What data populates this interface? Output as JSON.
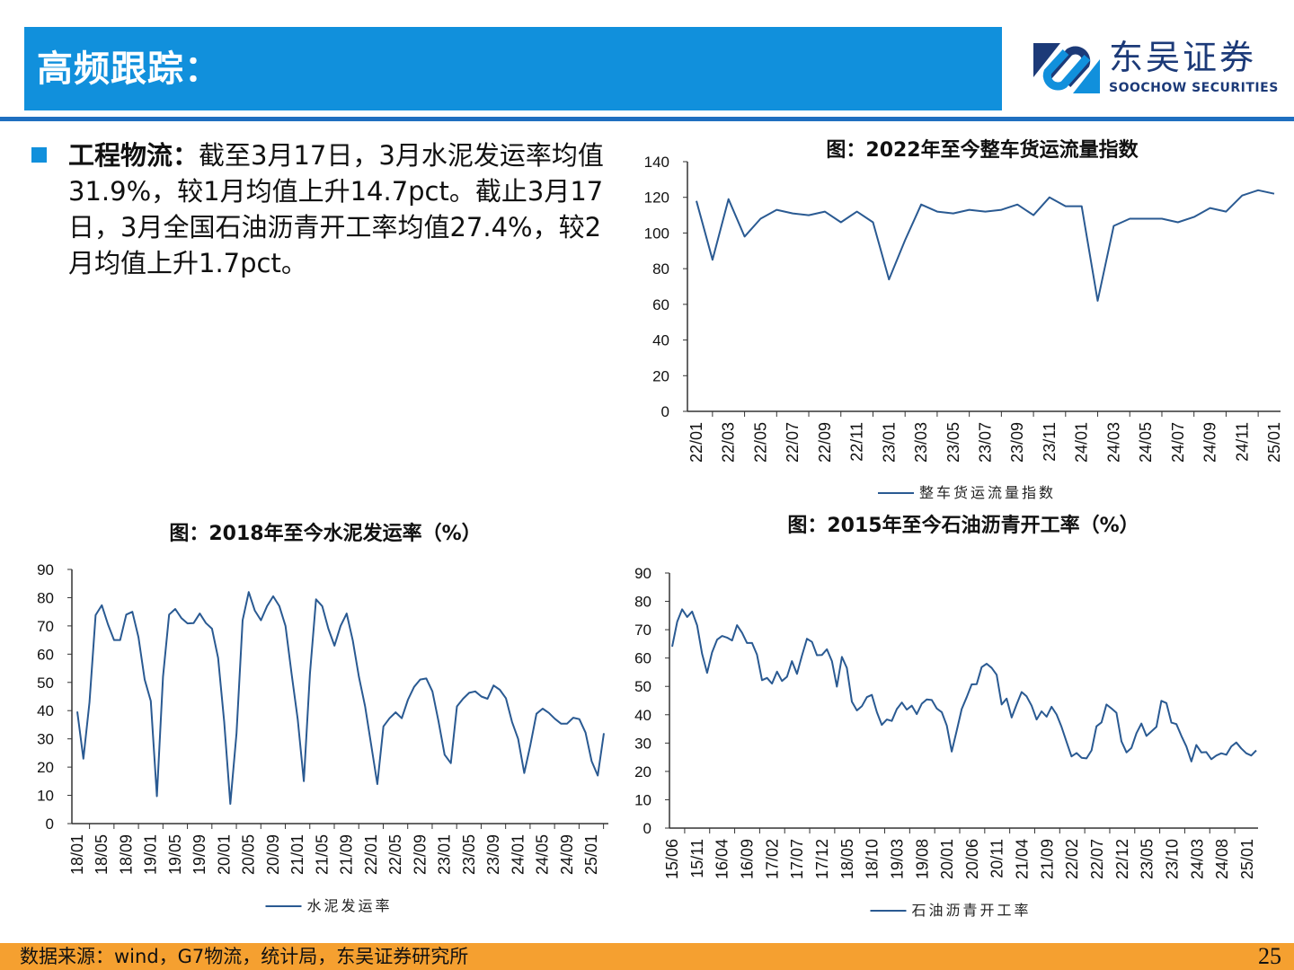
{
  "header": {
    "title": "高频跟踪："
  },
  "logo": {
    "cn": "东吴证券",
    "en": "SOOCHOW SECURITIES"
  },
  "bullet": {
    "lead": "工程物流：",
    "text": "截至3月17日，3月水泥发运率均值31.9%，较1月均值上升14.7pct。截止3月17日，3月全国石油沥青开工率均值27.4%，较2月均值上升1.7pct。"
  },
  "footer": {
    "source": "数据来源：wind，G7物流，统计局，东吴证券研究所",
    "page": "25"
  },
  "colors": {
    "header": "#1190dc",
    "line": "#2a5a92",
    "footer": "#f5a030"
  },
  "chart_data": [
    {
      "type": "line",
      "title": "图：2022年至今整车货运流量指数",
      "legend": "整车货运流量指数",
      "legend_position": "bottom",
      "ylim": [
        0,
        140
      ],
      "yticks": [
        0,
        20,
        40,
        60,
        80,
        100,
        120,
        140
      ],
      "xticks": [
        "22/01",
        "22/03",
        "22/05",
        "22/07",
        "22/09",
        "22/11",
        "23/01",
        "23/03",
        "23/05",
        "23/07",
        "23/09",
        "23/11",
        "24/01",
        "24/03",
        "24/05",
        "24/07",
        "24/09",
        "24/11",
        "25/01"
      ],
      "series": [
        {
          "name": "整车货运流量指数",
          "values": [
            118,
            85,
            119,
            98,
            108,
            113,
            111,
            110,
            112,
            106,
            112,
            106,
            74,
            96,
            116,
            112,
            111,
            113,
            112,
            113,
            116,
            110,
            120,
            115,
            115,
            62,
            104,
            108,
            108,
            108,
            106,
            109,
            114,
            112,
            121,
            124,
            122
          ]
        }
      ]
    },
    {
      "type": "line",
      "title": "图：2018年至今水泥发运率（%）",
      "legend": "水泥发运率",
      "legend_position": "bottom",
      "ylim": [
        0,
        90
      ],
      "yticks": [
        0,
        10,
        20,
        30,
        40,
        50,
        60,
        70,
        80,
        90
      ],
      "xticks": [
        "18/01",
        "18/05",
        "18/09",
        "19/01",
        "19/05",
        "19/09",
        "20/01",
        "20/05",
        "20/09",
        "21/01",
        "21/05",
        "21/09",
        "22/01",
        "22/05",
        "22/09",
        "23/01",
        "23/05",
        "23/09",
        "24/01",
        "24/05",
        "24/09",
        "25/01"
      ],
      "series": [
        {
          "name": "水泥发运率",
          "values": [
            39.7,
            23,
            43,
            73.8,
            77.3,
            70.6,
            65,
            65,
            74,
            75,
            66,
            51,
            43.4,
            9.7,
            52,
            74,
            76,
            72.8,
            70.9,
            71,
            74.4,
            71,
            69,
            58.7,
            36,
            7,
            32,
            72,
            82,
            75.4,
            72,
            77,
            80.5,
            77,
            70,
            53,
            37,
            15,
            53,
            79.4,
            77,
            69,
            63,
            70,
            74.4,
            64.8,
            52,
            41.5,
            27.8,
            14,
            34.4,
            37.3,
            39.4,
            37.3,
            43.9,
            48.4,
            51,
            51.4,
            46.8,
            36.2,
            24.4,
            21.4,
            41.5,
            44.2,
            46.3,
            46.8,
            45,
            44.2,
            48.9,
            47.4,
            44.4,
            36,
            30,
            17.9,
            27.8,
            38.9,
            40.7,
            39.2,
            37.1,
            35.4,
            35.4,
            37.5,
            37,
            32.2,
            22.1,
            17,
            32
          ]
        }
      ]
    },
    {
      "type": "line",
      "title": "图：2015年至今石油沥青开工率（%）",
      "legend": "石油沥青开工率",
      "legend_position": "bottom",
      "ylim": [
        0,
        90
      ],
      "yticks": [
        0,
        10,
        20,
        30,
        40,
        50,
        60,
        70,
        80,
        90
      ],
      "xticks": [
        "15/06",
        "15/11",
        "16/04",
        "16/09",
        "17/02",
        "17/07",
        "17/12",
        "18/05",
        "18/10",
        "19/03",
        "19/08",
        "20/01",
        "20/06",
        "20/11",
        "21/04",
        "21/09",
        "22/02",
        "22/07",
        "22/12",
        "23/05",
        "23/10",
        "24/03",
        "24/08",
        "25/01"
      ],
      "series": [
        {
          "name": "石油沥青开工率",
          "values": [
            64,
            72.8,
            77.2,
            74.5,
            76.4,
            71.5,
            61.5,
            54.8,
            62,
            66.5,
            67.8,
            67.2,
            66.2,
            71.6,
            68.9,
            65.3,
            65.3,
            61.2,
            52.2,
            53,
            51,
            55.2,
            51.9,
            53.4,
            58.9,
            54.4,
            60.8,
            66.8,
            65.7,
            61,
            61.1,
            63.1,
            58.9,
            49.9,
            60.4,
            56.5,
            44.6,
            41.5,
            43,
            46.2,
            47,
            40.9,
            36.4,
            38.3,
            37.8,
            42,
            44.3,
            41.8,
            43.2,
            40.2,
            43.9,
            45.4,
            45.2,
            42.2,
            40.9,
            36.2,
            27,
            34.4,
            42,
            46.2,
            50.7,
            50.8,
            56.8,
            58,
            56.5,
            54.1,
            43.6,
            45.7,
            39,
            43.6,
            48,
            46.5,
            43.2,
            38.3,
            41.2,
            39.3,
            42.8,
            40.1,
            35.7,
            30.4,
            25.3,
            26.5,
            24.8,
            24.6,
            27.4,
            35.9,
            37.3,
            43.6,
            42.2,
            40.7,
            30.6,
            26.7,
            28.3,
            33.5,
            36.9,
            32.5,
            34.1,
            35.7,
            44.9,
            44.1,
            37.2,
            36.7,
            32.5,
            28.8,
            23.5,
            29.3,
            26.7,
            26.8,
            24.3,
            25.6,
            26.4,
            25.9,
            28.8,
            30.2,
            28.1,
            26.4,
            25.6,
            27.4
          ]
        }
      ]
    }
  ]
}
